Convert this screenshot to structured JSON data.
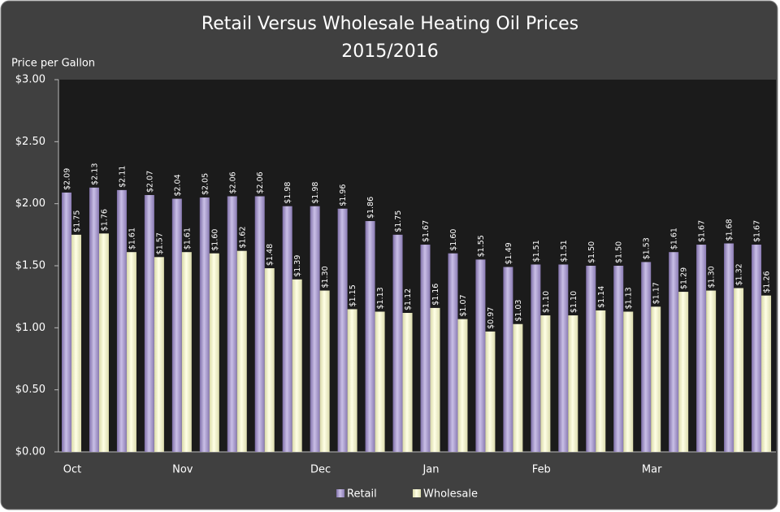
{
  "chart_data": {
    "type": "bar",
    "title": "Retail Versus Wholesale Heating Oil Prices",
    "subtitle": "2015/2016",
    "y_label": "Price per Gallon",
    "categories": [
      "Oct",
      null,
      null,
      null,
      "Nov",
      null,
      null,
      null,
      null,
      "Dec",
      null,
      null,
      null,
      "Jan",
      null,
      null,
      null,
      "Feb",
      null,
      null,
      null,
      "Mar",
      null,
      null,
      null,
      null
    ],
    "series": [
      {
        "name": "Retail",
        "color": "#a496c8",
        "values": [
          2.09,
          2.13,
          2.11,
          2.07,
          2.04,
          2.05,
          2.06,
          2.06,
          1.98,
          1.98,
          1.96,
          1.86,
          1.75,
          1.67,
          1.6,
          1.55,
          1.49,
          1.51,
          1.51,
          1.5,
          1.5,
          1.53,
          1.61,
          1.67,
          1.68,
          1.67
        ],
        "value_labels": [
          "$2.09",
          "$2.13",
          "$2.11",
          "$2.07",
          "$2.04",
          "$2.05",
          "$2.06",
          "$2.06",
          "$1.98",
          "$1.98",
          "$1.96",
          "$1.86",
          "$1.75",
          "$1.67",
          "$1.60",
          "$1.55",
          "$1.49",
          "$1.51",
          "$1.51",
          "$1.50",
          "$1.50",
          "$1.53",
          "$1.61",
          "$1.67",
          "$1.68",
          "$1.67"
        ]
      },
      {
        "name": "Wholesale",
        "color": "#f4f4c6",
        "values": [
          1.75,
          1.76,
          1.61,
          1.57,
          1.61,
          1.6,
          1.62,
          1.48,
          1.39,
          1.3,
          1.15,
          1.13,
          1.12,
          1.16,
          1.07,
          0.97,
          1.03,
          1.1,
          1.1,
          1.14,
          1.13,
          1.17,
          1.29,
          1.3,
          1.32,
          1.26
        ],
        "value_labels": [
          "$1.75",
          "$1.76",
          "$1.61",
          "$1.57",
          "$1.61",
          "$1.60",
          "$1.62",
          "$1.48",
          "$1.39",
          "$1.30",
          "$1.15",
          "$1.13",
          "$1.12",
          "$1.16",
          "$1.07",
          "$0.97",
          "$1.03",
          "$1.10",
          "$1.10",
          "$1.14",
          "$1.13",
          "$1.17",
          "$1.29",
          "$1.30",
          "$1.32",
          "$1.26"
        ]
      }
    ],
    "ylim": [
      0,
      3
    ],
    "yticks": [
      {
        "value": 0,
        "label": "$0.00"
      },
      {
        "value": 0.5,
        "label": "$0.50"
      },
      {
        "value": 1,
        "label": "$1.00"
      },
      {
        "value": 1.5,
        "label": "$1.50"
      },
      {
        "value": 2,
        "label": "$2.00"
      },
      {
        "value": 2.5,
        "label": "$2.50"
      },
      {
        "value": 3,
        "label": "$3.00"
      }
    ],
    "legend": "bottom"
  }
}
